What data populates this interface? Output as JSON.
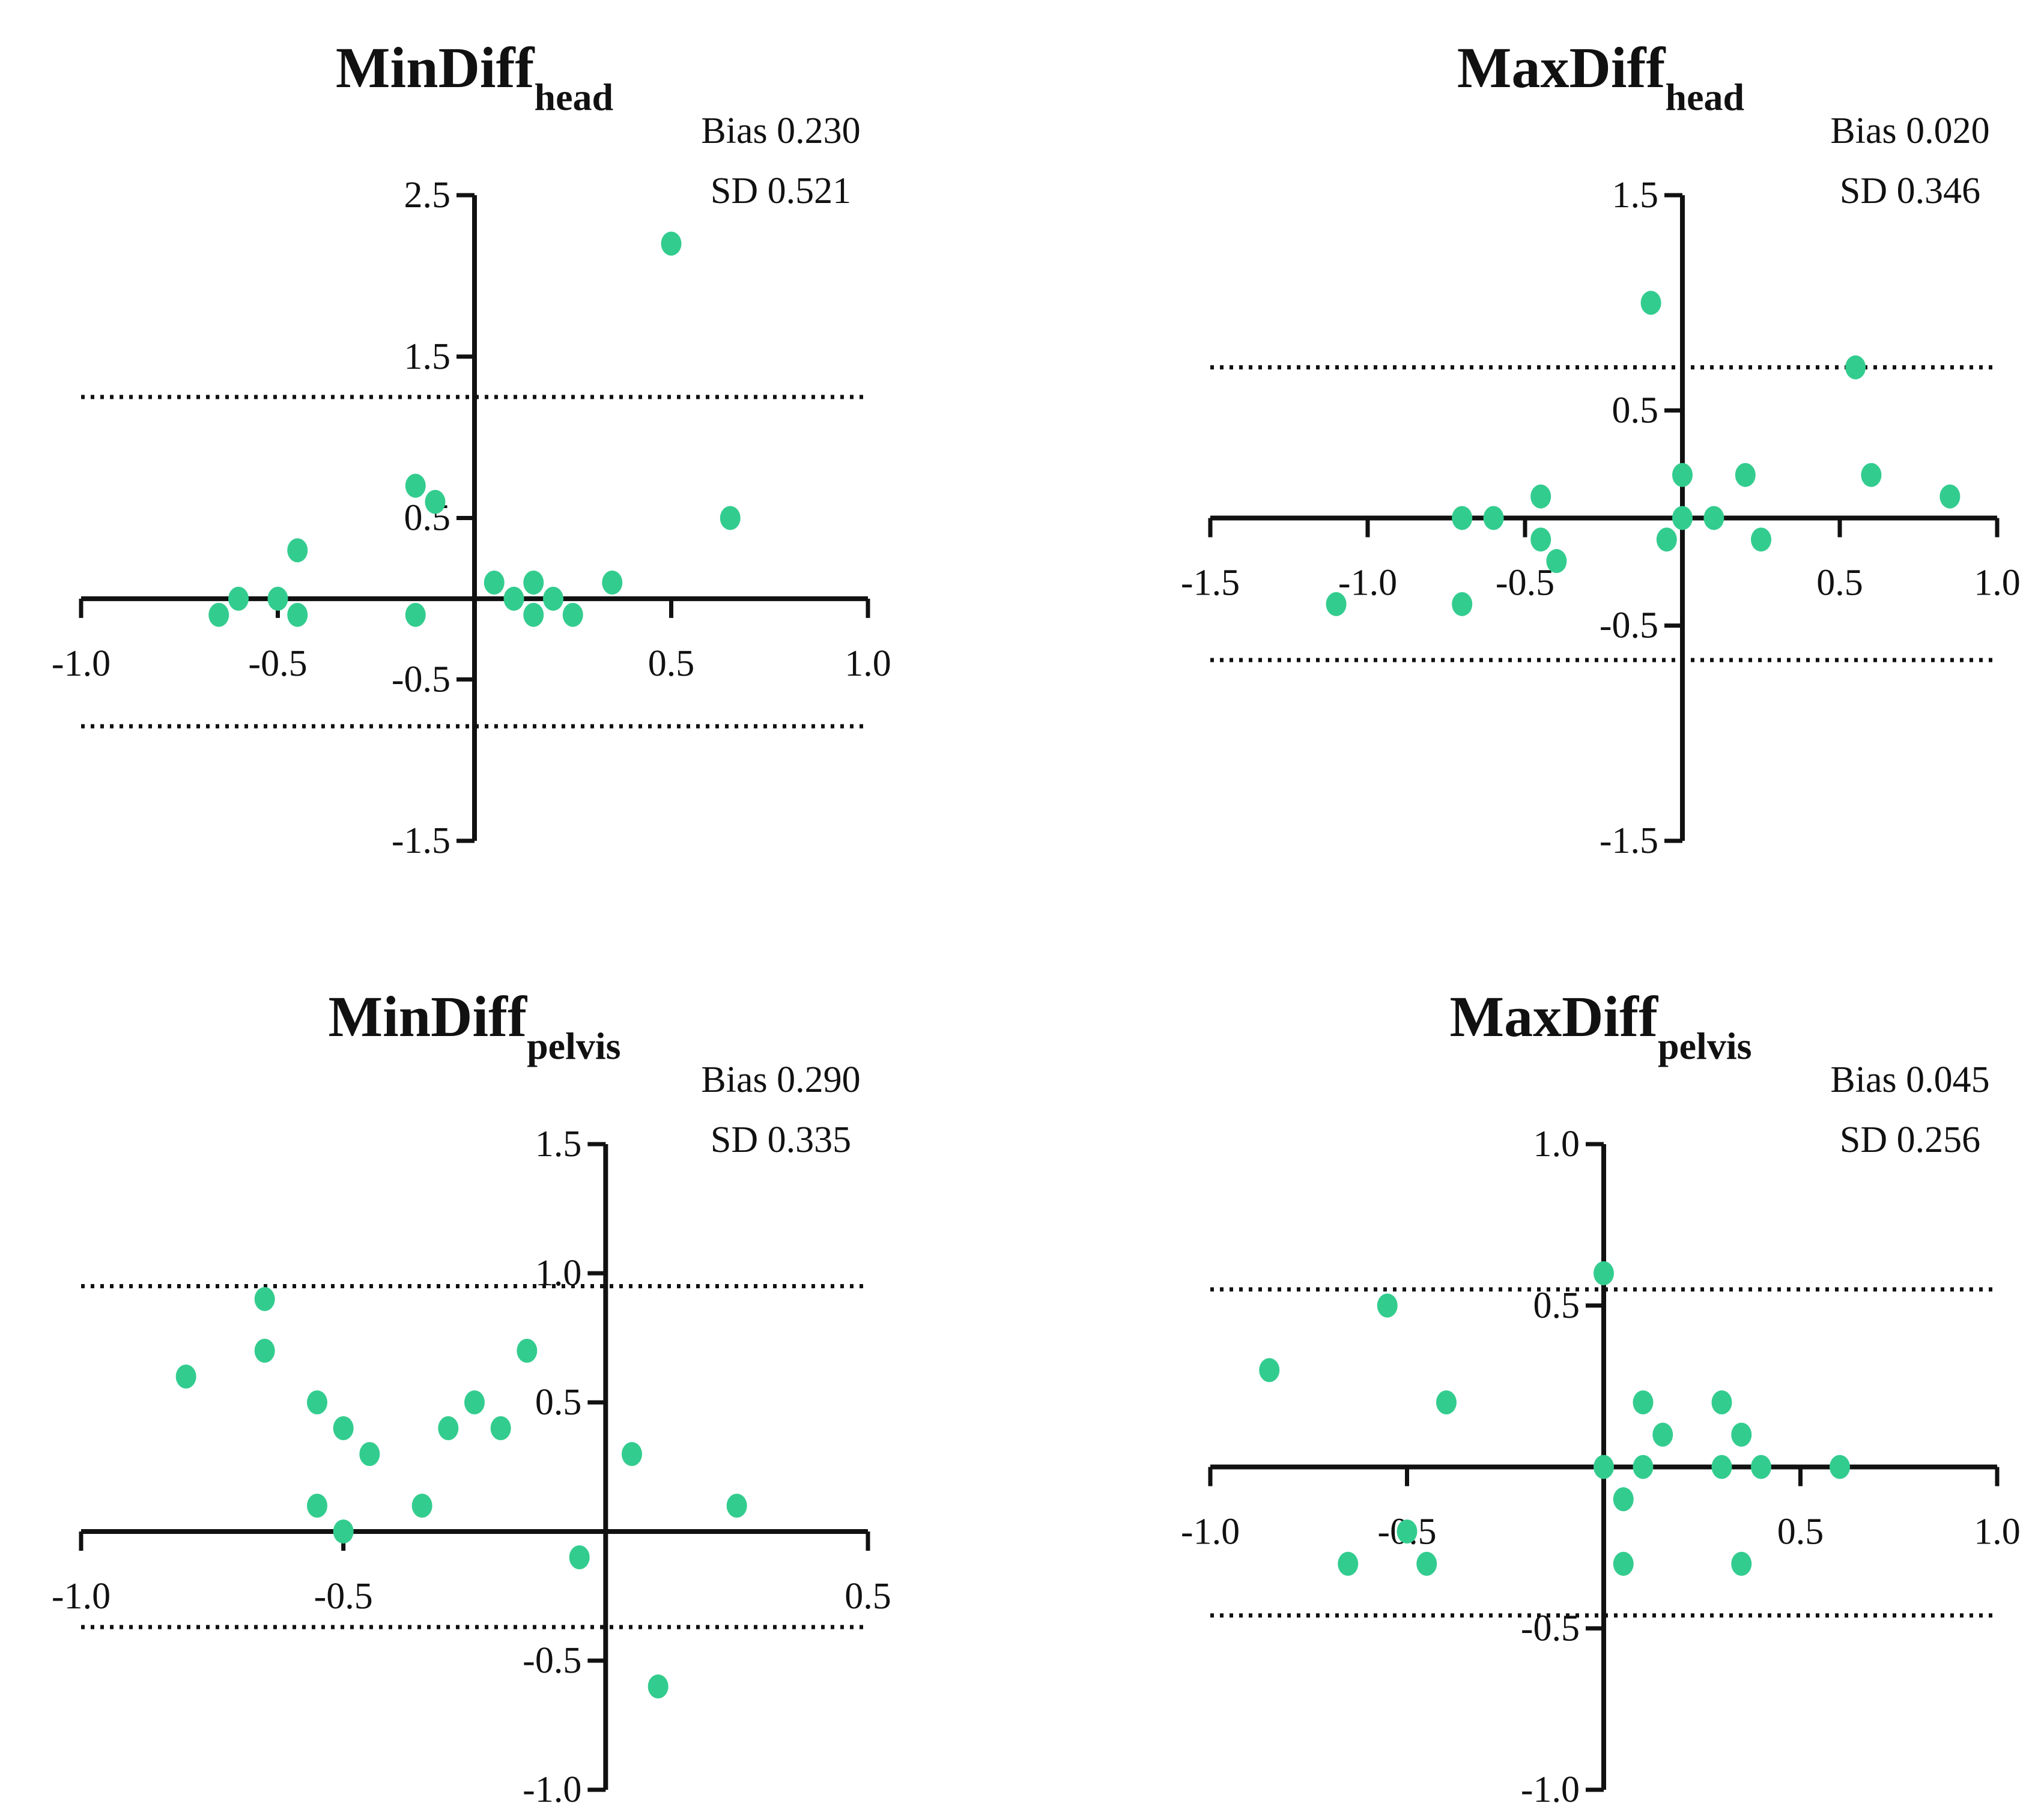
{
  "colors": {
    "point": "#33CC8F",
    "axis": "#111111",
    "limit_line": "#111111",
    "background": "#FFFFFF"
  },
  "chart_data": [
    {
      "type": "scatter",
      "title": "MinDiff",
      "title_subscript": "head",
      "bias_text": "Bias 0.230",
      "sd_text": "SD 0.521",
      "xlim": [
        -1.0,
        1.0
      ],
      "ylim": [
        -1.5,
        2.5
      ],
      "x_ticks": [
        -1.0,
        -0.5,
        0.5,
        1.0
      ],
      "x_tick_labels": [
        "-1.0",
        "-0.5",
        "0.5",
        "1.0"
      ],
      "y_ticks": [
        2.5,
        1.5,
        0.5,
        -0.5,
        -1.5
      ],
      "y_tick_labels": [
        "2.5",
        "1.5",
        "0.5",
        "-0.5",
        "-1.5"
      ],
      "limits_of_agreement": [
        1.25,
        -0.79
      ],
      "points": [
        [
          0.5,
          2.2
        ],
        [
          0.65,
          0.5
        ],
        [
          -0.15,
          0.7
        ],
        [
          -0.1,
          0.6
        ],
        [
          -0.45,
          0.3
        ],
        [
          -0.6,
          0.0
        ],
        [
          -0.5,
          0.0
        ],
        [
          -0.65,
          -0.1
        ],
        [
          -0.45,
          -0.1
        ],
        [
          -0.15,
          -0.1
        ],
        [
          0.05,
          0.1
        ],
        [
          0.1,
          0.0
        ],
        [
          0.15,
          0.1
        ],
        [
          0.15,
          -0.1
        ],
        [
          0.2,
          0.0
        ],
        [
          0.25,
          -0.1
        ],
        [
          0.35,
          0.1
        ]
      ]
    },
    {
      "type": "scatter",
      "title": "MaxDiff",
      "title_subscript": "head",
      "bias_text": "Bias 0.020",
      "sd_text": "SD 0.346",
      "xlim": [
        -1.5,
        1.0
      ],
      "ylim": [
        -1.5,
        1.5
      ],
      "x_ticks": [
        -1.5,
        -1.0,
        -0.5,
        0.5,
        1.0
      ],
      "x_tick_labels": [
        "-1.5",
        "-1.0",
        "-0.5",
        "0.5",
        "1.0"
      ],
      "y_ticks": [
        1.5,
        0.5,
        -0.5,
        -1.5
      ],
      "y_tick_labels": [
        "1.5",
        "0.5",
        "-0.5",
        "-1.5"
      ],
      "limits_of_agreement": [
        0.7,
        -0.66
      ],
      "points": [
        [
          -0.1,
          1.0
        ],
        [
          0.55,
          0.7
        ],
        [
          0.0,
          0.2
        ],
        [
          0.2,
          0.2
        ],
        [
          0.6,
          0.2
        ],
        [
          0.85,
          0.1
        ],
        [
          -0.45,
          0.1
        ],
        [
          -0.7,
          0.0
        ],
        [
          -0.6,
          0.0
        ],
        [
          0.0,
          0.0
        ],
        [
          0.1,
          0.0
        ],
        [
          -0.45,
          -0.1
        ],
        [
          -0.05,
          -0.1
        ],
        [
          0.25,
          -0.1
        ],
        [
          -0.4,
          -0.2
        ],
        [
          -1.1,
          -0.4
        ],
        [
          -0.7,
          -0.4
        ]
      ]
    },
    {
      "type": "scatter",
      "title": "MinDiff",
      "title_subscript": "pelvis",
      "bias_text": "Bias 0.290",
      "sd_text": "SD 0.335",
      "xlim": [
        -1.0,
        0.5
      ],
      "ylim": [
        -1.0,
        1.5
      ],
      "x_ticks": [
        -1.0,
        -0.5,
        0.5
      ],
      "x_tick_labels": [
        "-1.0",
        "-0.5",
        "0.5"
      ],
      "y_ticks": [
        1.5,
        1.0,
        0.5,
        -0.5,
        -1.0
      ],
      "y_tick_labels": [
        "1.5",
        "1.0",
        "0.5",
        "-0.5",
        "-1.0"
      ],
      "limits_of_agreement": [
        0.95,
        -0.37
      ],
      "points": [
        [
          -0.65,
          0.9
        ],
        [
          -0.65,
          0.7
        ],
        [
          -0.15,
          0.7
        ],
        [
          -0.8,
          0.6
        ],
        [
          -0.55,
          0.5
        ],
        [
          -0.25,
          0.5
        ],
        [
          -0.5,
          0.4
        ],
        [
          -0.3,
          0.4
        ],
        [
          -0.2,
          0.4
        ],
        [
          -0.45,
          0.3
        ],
        [
          0.05,
          0.3
        ],
        [
          -0.55,
          0.1
        ],
        [
          -0.35,
          0.1
        ],
        [
          0.25,
          0.1
        ],
        [
          -0.5,
          0.0
        ],
        [
          -0.05,
          -0.1
        ],
        [
          0.1,
          -0.6
        ]
      ]
    },
    {
      "type": "scatter",
      "title": "MaxDiff",
      "title_subscript": "pelvis",
      "bias_text": "Bias 0.045",
      "sd_text": "SD 0.256",
      "xlim": [
        -1.0,
        1.0
      ],
      "ylim": [
        -1.0,
        1.0
      ],
      "x_ticks": [
        -1.0,
        -0.5,
        0.5,
        1.0
      ],
      "x_tick_labels": [
        "-1.0",
        "-0.5",
        "0.5",
        "1.0"
      ],
      "y_ticks": [
        1.0,
        0.5,
        -0.5,
        -1.0
      ],
      "y_tick_labels": [
        "1.0",
        "0.5",
        "-0.5",
        "-1.0"
      ],
      "limits_of_agreement": [
        0.55,
        -0.46
      ],
      "points": [
        [
          0.0,
          0.6
        ],
        [
          -0.55,
          0.5
        ],
        [
          -0.85,
          0.3
        ],
        [
          -0.4,
          0.2
        ],
        [
          0.1,
          0.2
        ],
        [
          0.3,
          0.2
        ],
        [
          0.15,
          0.1
        ],
        [
          0.35,
          0.1
        ],
        [
          0.0,
          0.0
        ],
        [
          0.1,
          0.0
        ],
        [
          0.3,
          0.0
        ],
        [
          0.4,
          0.0
        ],
        [
          0.6,
          0.0
        ],
        [
          0.05,
          -0.1
        ],
        [
          -0.5,
          -0.2
        ],
        [
          -0.65,
          -0.3
        ],
        [
          -0.45,
          -0.3
        ],
        [
          0.05,
          -0.3
        ],
        [
          0.35,
          -0.3
        ]
      ]
    }
  ]
}
